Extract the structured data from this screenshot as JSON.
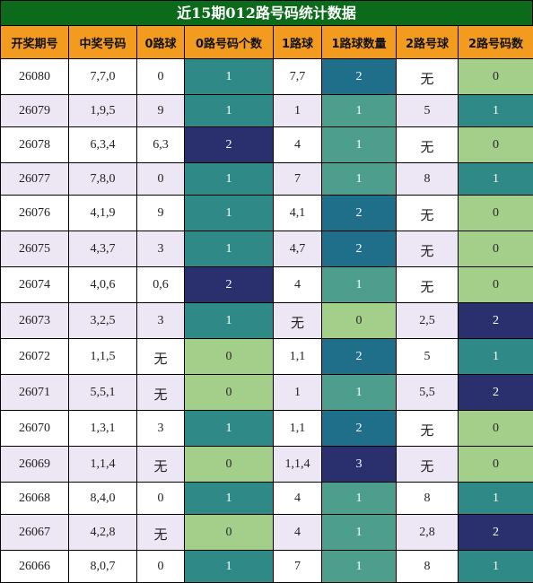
{
  "title": "近15期012路号码统计数据",
  "headers": [
    "开奖期号",
    "中奖号码",
    "0路球",
    "0路号码个数",
    "1路球",
    "1路球数量",
    "2路号球",
    "2路号码数"
  ],
  "colors": {
    "title_bg": "#0b6b1a",
    "header_bg": "#f39b1f",
    "count_0": "#a3cf8a",
    "count_1_teal": "#2f8a87",
    "count_1_sea": "#4d9e8c",
    "count_2_dark": "#2a306e",
    "count_2_blue": "#1f6f8b",
    "count_3": "#2a306e",
    "row_even_bg": "#ede6f4"
  },
  "rows": [
    {
      "issue": "26080",
      "numbers": "7,7,0",
      "r0": "0",
      "c0": "1",
      "r1": "7,7",
      "c1": "2",
      "r2": "无",
      "c2": "0"
    },
    {
      "issue": "26079",
      "numbers": "1,9,5",
      "r0": "9",
      "c0": "1",
      "r1": "1",
      "c1": "1",
      "r2": "5",
      "c2": "1"
    },
    {
      "issue": "26078",
      "numbers": "6,3,4",
      "r0": "6,3",
      "c0": "2",
      "r1": "4",
      "c1": "1",
      "r2": "无",
      "c2": "0"
    },
    {
      "issue": "26077",
      "numbers": "7,8,0",
      "r0": "0",
      "c0": "1",
      "r1": "7",
      "c1": "1",
      "r2": "8",
      "c2": "1"
    },
    {
      "issue": "26076",
      "numbers": "4,1,9",
      "r0": "9",
      "c0": "1",
      "r1": "4,1",
      "c1": "2",
      "r2": "无",
      "c2": "0"
    },
    {
      "issue": "26075",
      "numbers": "4,3,7",
      "r0": "3",
      "c0": "1",
      "r1": "4,7",
      "c1": "2",
      "r2": "无",
      "c2": "0"
    },
    {
      "issue": "26074",
      "numbers": "4,0,6",
      "r0": "0,6",
      "c0": "2",
      "r1": "4",
      "c1": "1",
      "r2": "无",
      "c2": "0"
    },
    {
      "issue": "26073",
      "numbers": "3,2,5",
      "r0": "3",
      "c0": "1",
      "r1": "无",
      "c1": "0",
      "r2": "2,5",
      "c2": "2"
    },
    {
      "issue": "26072",
      "numbers": "1,1,5",
      "r0": "无",
      "c0": "0",
      "r1": "1,1",
      "c1": "2",
      "r2": "5",
      "c2": "1"
    },
    {
      "issue": "26071",
      "numbers": "5,5,1",
      "r0": "无",
      "c0": "0",
      "r1": "1",
      "c1": "1",
      "r2": "5,5",
      "c2": "2"
    },
    {
      "issue": "26070",
      "numbers": "1,3,1",
      "r0": "3",
      "c0": "1",
      "r1": "1,1",
      "c1": "2",
      "r2": "无",
      "c2": "0"
    },
    {
      "issue": "26069",
      "numbers": "1,1,4",
      "r0": "无",
      "c0": "0",
      "r1": "1,1,4",
      "c1": "3",
      "r2": "无",
      "c2": "0"
    },
    {
      "issue": "26068",
      "numbers": "8,4,0",
      "r0": "0",
      "c0": "1",
      "r1": "4",
      "c1": "1",
      "r2": "8",
      "c2": "1"
    },
    {
      "issue": "26067",
      "numbers": "4,2,8",
      "r0": "无",
      "c0": "0",
      "r1": "4",
      "c1": "1",
      "r2": "2,8",
      "c2": "2"
    },
    {
      "issue": "26066",
      "numbers": "8,0,7",
      "r0": "0",
      "c0": "1",
      "r1": "7",
      "c1": "1",
      "r2": "8",
      "c2": "1"
    }
  ]
}
